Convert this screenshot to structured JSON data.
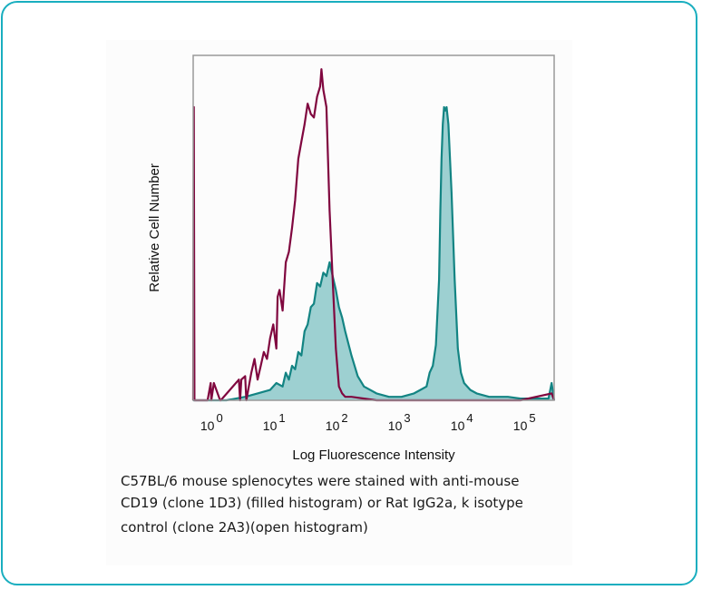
{
  "colors": {
    "frame": "#19aebf",
    "filled_fill": "#9dd0d1",
    "filled_stroke": "#138483",
    "open_stroke": "#80073f",
    "axis": "#999999"
  },
  "caption": {
    "line1": "C57BL/6 mouse splenocytes were stained with anti-mouse",
    "line2": "CD19 (clone 1D3) (filled histogram) or Rat IgG2a, k isotype",
    "line3": "control (clone 2A3)(open histogram)"
  },
  "chart_data": {
    "type": "area",
    "title": "",
    "xlabel": "Log Fluorescence Intensity",
    "ylabel": "Relative Cell Number",
    "xscale": "log10",
    "xlim": [
      -0.23,
      5.54
    ],
    "ylim": [
      0,
      100
    ],
    "grid": false,
    "x_ticks": [
      {
        "base": "10",
        "exp": "0",
        "value": 0
      },
      {
        "base": "10",
        "exp": "1",
        "value": 1
      },
      {
        "base": "10",
        "exp": "2",
        "value": 2
      },
      {
        "base": "10",
        "exp": "3",
        "value": 3
      },
      {
        "base": "10",
        "exp": "4",
        "value": 4
      },
      {
        "base": "10",
        "exp": "5",
        "value": 5
      }
    ],
    "series": [
      {
        "name": "anti-mouse CD19 (clone 1D3) (filled histogram)",
        "style": "filled",
        "x": [
          -0.23,
          0.3,
          0.6,
          0.8,
          1.0,
          1.1,
          1.2,
          1.25,
          1.3,
          1.35,
          1.4,
          1.45,
          1.5,
          1.55,
          1.6,
          1.65,
          1.7,
          1.75,
          1.8,
          1.85,
          1.9,
          1.95,
          2.0,
          2.05,
          2.1,
          2.15,
          2.2,
          2.3,
          2.4,
          2.5,
          2.7,
          2.9,
          3.1,
          3.3,
          3.4,
          3.5,
          3.55,
          3.6,
          3.65,
          3.7,
          3.72,
          3.74,
          3.76,
          3.78,
          3.8,
          3.82,
          3.85,
          3.9,
          3.95,
          4.0,
          4.05,
          4.1,
          4.2,
          4.3,
          4.5,
          4.8,
          5.0,
          5.2,
          5.45,
          5.5,
          5.54
        ],
        "y": [
          0,
          0,
          1,
          2,
          3,
          5,
          4,
          8,
          6,
          10,
          9,
          14,
          13,
          20,
          22,
          27,
          28,
          34,
          33,
          37,
          36,
          40,
          36,
          32,
          27,
          24,
          20,
          13,
          7,
          4,
          2,
          1,
          1,
          2,
          3,
          4,
          8,
          10,
          16,
          35,
          55,
          70,
          80,
          85,
          84,
          85,
          80,
          60,
          35,
          15,
          8,
          5,
          3,
          2,
          1,
          1,
          0.5,
          0.5,
          0.5,
          5,
          0
        ]
      },
      {
        "name": "Rat IgG2a, k isotype control (clone 2A3) (open histogram)",
        "style": "open",
        "x": [
          -0.23,
          -0.22,
          -0.21,
          0.0,
          0.05,
          0.06,
          0.1,
          0.2,
          0.21,
          0.5,
          0.52,
          0.54,
          0.6,
          0.62,
          0.7,
          0.75,
          0.8,
          0.85,
          0.9,
          0.95,
          1.0,
          1.05,
          1.1,
          1.12,
          1.15,
          1.2,
          1.25,
          1.3,
          1.35,
          1.4,
          1.45,
          1.5,
          1.55,
          1.6,
          1.65,
          1.7,
          1.75,
          1.8,
          1.82,
          1.85,
          1.9,
          1.95,
          2.0,
          2.05,
          2.1,
          2.15,
          2.2,
          2.3,
          2.5,
          2.7,
          3.0,
          3.5,
          4.0,
          4.5,
          5.0,
          5.5,
          5.54
        ],
        "y": [
          0,
          85,
          0,
          0,
          5,
          0,
          5,
          0,
          0,
          6,
          0,
          6,
          7,
          0,
          8,
          12,
          6,
          10,
          14,
          12,
          18,
          22,
          15,
          30,
          32,
          26,
          40,
          43,
          50,
          58,
          70,
          75,
          80,
          86,
          83,
          82,
          88,
          91,
          96,
          90,
          85,
          55,
          35,
          15,
          4,
          2,
          1,
          1,
          0.5,
          0,
          0,
          0,
          0,
          0,
          0,
          2,
          0
        ]
      }
    ]
  }
}
